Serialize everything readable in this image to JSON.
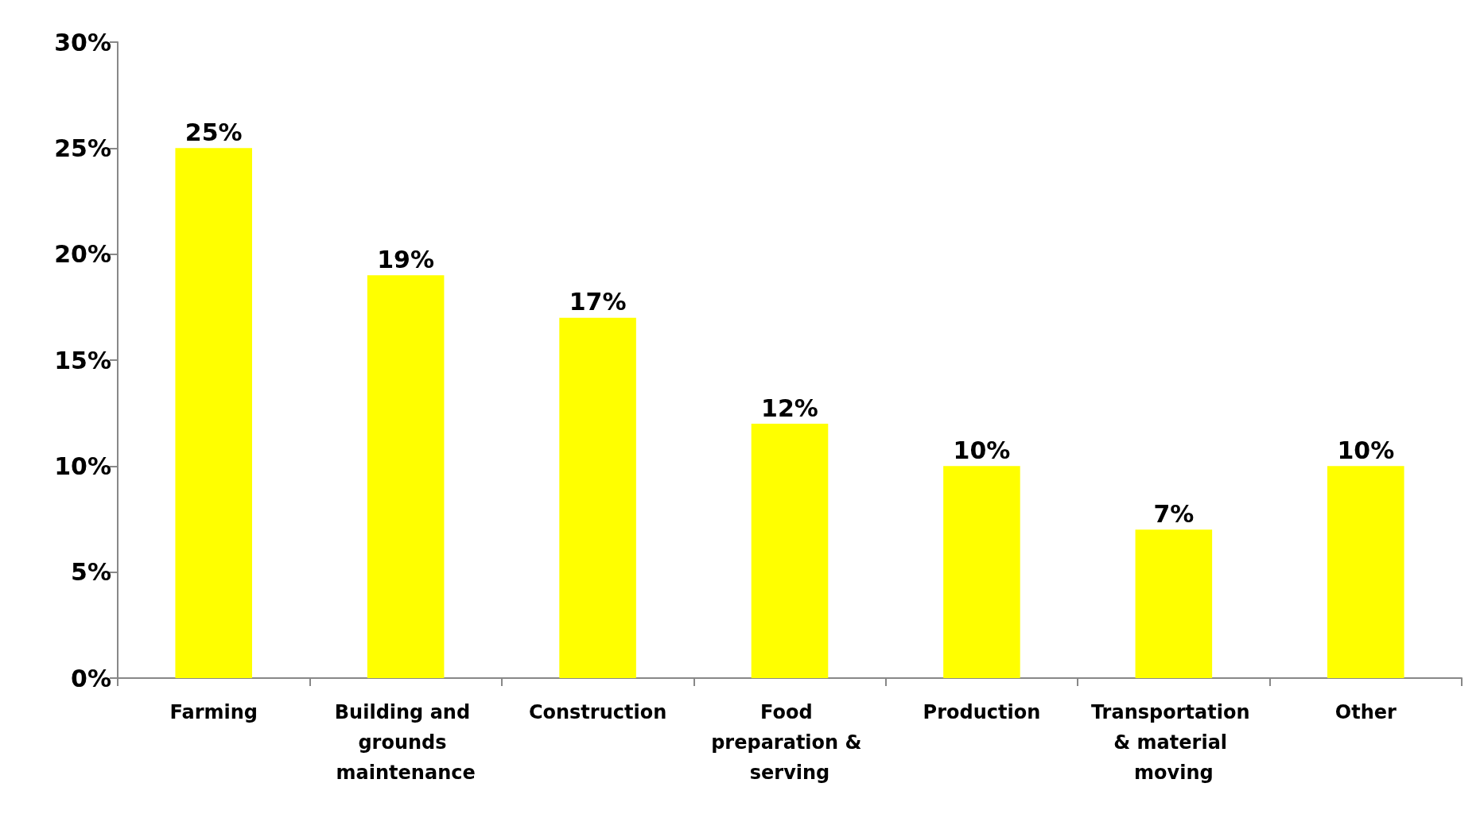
{
  "chart_data": {
    "type": "bar",
    "categories": [
      "Farming",
      "Building and grounds maintenance",
      "Construction",
      "Food preparation & serving",
      "Production",
      "Transportation & material moving",
      "Other"
    ],
    "values": [
      25,
      19,
      17,
      12,
      10,
      7,
      10
    ],
    "value_labels": [
      "25%",
      "19%",
      "17%",
      "12%",
      "10%",
      "7%",
      "10%"
    ],
    "color": "#ffff00",
    "ylim": [
      0,
      30
    ],
    "yticks": [
      {
        "value": 0,
        "label": "0%"
      },
      {
        "value": 5,
        "label": "5%"
      },
      {
        "value": 10,
        "label": "10%"
      },
      {
        "value": 15,
        "label": "15%"
      },
      {
        "value": 20,
        "label": "20%"
      },
      {
        "value": 25,
        "label": "25%"
      },
      {
        "value": 30,
        "label": "30%"
      }
    ]
  }
}
